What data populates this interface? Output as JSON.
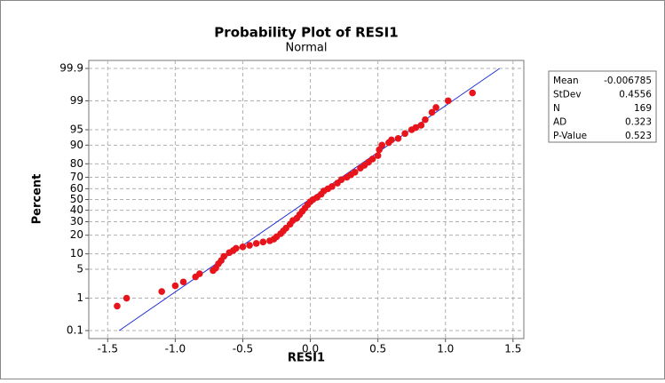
{
  "chart_data": {
    "type": "probability",
    "title": "Probability Plot of RESI1",
    "subtitle": "Normal",
    "x_label": "RESI1",
    "y_label": "Percent",
    "xlim": [
      -1.64,
      1.58
    ],
    "xticks": [
      -1.5,
      {
        "value": -1.0,
        "label": "-1.0"
      },
      -0.5,
      {
        "value": 0.0,
        "label": "0.0"
      },
      0.5,
      {
        "value": 1.0,
        "label": "1.0"
      },
      1.5
    ],
    "ylim": [
      0.1,
      99.9
    ],
    "yticks": [
      0.1,
      1,
      5,
      10,
      20,
      30,
      40,
      50,
      60,
      70,
      80,
      90,
      95,
      99,
      99.9
    ],
    "grid": true,
    "color": "#e8141b",
    "line_color": "#1f2fd6",
    "x": [
      -1.43,
      -1.36,
      -1.1,
      -1.0,
      -0.94,
      -0.85,
      -0.82,
      -0.72,
      -0.7,
      -0.68,
      -0.66,
      -0.64,
      -0.6,
      -0.57,
      -0.55,
      -0.5,
      -0.45,
      -0.4,
      -0.35,
      -0.3,
      -0.27,
      -0.25,
      -0.22,
      -0.2,
      -0.18,
      -0.15,
      -0.13,
      -0.1,
      -0.08,
      -0.06,
      -0.04,
      -0.02,
      0.0,
      0.02,
      0.05,
      0.08,
      0.1,
      0.13,
      0.16,
      0.2,
      0.23,
      0.27,
      0.3,
      0.33,
      0.37,
      0.4,
      0.43,
      0.46,
      0.5,
      0.51,
      0.53,
      0.58,
      0.6,
      0.65,
      0.7,
      0.75,
      0.78,
      0.82,
      0.85,
      0.9,
      0.93,
      1.02,
      1.2
    ],
    "values": [
      0.6,
      1.0,
      1.5,
      2.1,
      2.6,
      3.4,
      4.0,
      4.7,
      5.3,
      6.5,
      7.5,
      9,
      10.5,
      11.5,
      12.5,
      13.2,
      14,
      15,
      15.8,
      16.5,
      17.5,
      19,
      21,
      23,
      25,
      28,
      31,
      33,
      36,
      39,
      42,
      45,
      48,
      50,
      52,
      55,
      58,
      60,
      62,
      65,
      68,
      70,
      72,
      74,
      77,
      79,
      81,
      83,
      85,
      88,
      90,
      91,
      92,
      92.5,
      94,
      95,
      95.5,
      96,
      97,
      98,
      98.5,
      99,
      99.4
    ],
    "fit_line": {
      "x": [
        -1.415,
        1.401
      ],
      "y": [
        0.1,
        99.9
      ]
    },
    "stats": [
      [
        "Mean",
        -0.006785
      ],
      [
        "StDev",
        0.4556
      ],
      [
        "N",
        169
      ],
      [
        "AD",
        0.323
      ],
      [
        "P-Value",
        0.523
      ]
    ]
  }
}
